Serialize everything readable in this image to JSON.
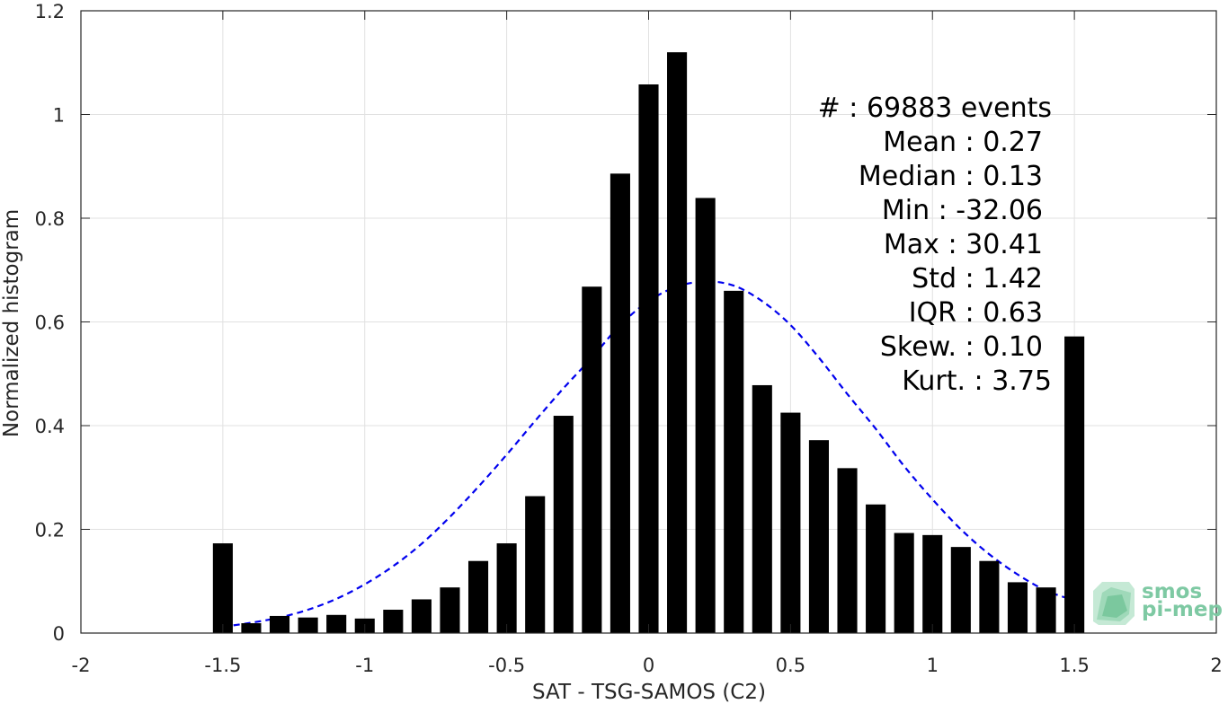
{
  "chart_data": {
    "type": "bar",
    "xlabel": "SAT - TSG-SAMOS (C2)",
    "ylabel": "Normalized histogram",
    "xlim": [
      -2,
      2
    ],
    "ylim": [
      0,
      1.2
    ],
    "xticks": [
      -2,
      -1.5,
      -1,
      -0.5,
      0,
      0.5,
      1,
      1.5,
      2
    ],
    "xtick_labels": [
      "-2",
      "-1.5",
      "-1",
      "-0.5",
      "0",
      "0.5",
      "1",
      "1.5",
      "2"
    ],
    "yticks": [
      0,
      0.2,
      0.4,
      0.6,
      0.8,
      1,
      1.2
    ],
    "ytick_labels": [
      "0",
      "0.2",
      "0.4",
      "0.6",
      "0.8",
      "1",
      "1.2"
    ],
    "grid": true,
    "bar_width": 0.07,
    "bars": [
      {
        "x": -1.5,
        "y": 0.173
      },
      {
        "x": -1.4,
        "y": 0.019
      },
      {
        "x": -1.3,
        "y": 0.033
      },
      {
        "x": -1.2,
        "y": 0.03
      },
      {
        "x": -1.1,
        "y": 0.035
      },
      {
        "x": -1.0,
        "y": 0.028
      },
      {
        "x": -0.9,
        "y": 0.045
      },
      {
        "x": -0.8,
        "y": 0.065
      },
      {
        "x": -0.7,
        "y": 0.088
      },
      {
        "x": -0.6,
        "y": 0.139
      },
      {
        "x": -0.5,
        "y": 0.173
      },
      {
        "x": -0.4,
        "y": 0.264
      },
      {
        "x": -0.3,
        "y": 0.419
      },
      {
        "x": -0.2,
        "y": 0.668
      },
      {
        "x": -0.1,
        "y": 0.886
      },
      {
        "x": 0.0,
        "y": 1.058
      },
      {
        "x": 0.1,
        "y": 1.12
      },
      {
        "x": 0.2,
        "y": 0.839
      },
      {
        "x": 0.3,
        "y": 0.66
      },
      {
        "x": 0.4,
        "y": 0.478
      },
      {
        "x": 0.5,
        "y": 0.425
      },
      {
        "x": 0.6,
        "y": 0.372
      },
      {
        "x": 0.7,
        "y": 0.318
      },
      {
        "x": 0.8,
        "y": 0.248
      },
      {
        "x": 0.9,
        "y": 0.193
      },
      {
        "x": 1.0,
        "y": 0.189
      },
      {
        "x": 1.1,
        "y": 0.166
      },
      {
        "x": 1.2,
        "y": 0.139
      },
      {
        "x": 1.3,
        "y": 0.098
      },
      {
        "x": 1.4,
        "y": 0.088
      },
      {
        "x": 1.5,
        "y": 0.572
      }
    ],
    "fit_curve": {
      "style": "dashed",
      "color": "#0000ee",
      "points": [
        [
          -1.5,
          0.012
        ],
        [
          -1.4,
          0.02
        ],
        [
          -1.3,
          0.03
        ],
        [
          -1.2,
          0.045
        ],
        [
          -1.1,
          0.066
        ],
        [
          -1.0,
          0.094
        ],
        [
          -0.9,
          0.129
        ],
        [
          -0.8,
          0.172
        ],
        [
          -0.7,
          0.224
        ],
        [
          -0.6,
          0.282
        ],
        [
          -0.5,
          0.344
        ],
        [
          -0.4,
          0.409
        ],
        [
          -0.3,
          0.472
        ],
        [
          -0.2,
          0.531
        ],
        [
          -0.1,
          0.594
        ],
        [
          0.0,
          0.64
        ],
        [
          0.1,
          0.668
        ],
        [
          0.2,
          0.678
        ],
        [
          0.3,
          0.67
        ],
        [
          0.4,
          0.64
        ],
        [
          0.5,
          0.594
        ],
        [
          0.6,
          0.531
        ],
        [
          0.7,
          0.461
        ],
        [
          0.8,
          0.394
        ],
        [
          0.9,
          0.322
        ],
        [
          1.0,
          0.258
        ],
        [
          1.1,
          0.2
        ],
        [
          1.2,
          0.152
        ],
        [
          1.3,
          0.113
        ],
        [
          1.4,
          0.082
        ],
        [
          1.5,
          0.063
        ]
      ]
    },
    "annotations": [
      "#  : 69883 events",
      "Mean : 0.27",
      "Median : 0.13",
      "Min : -32.06",
      "Max : 30.41",
      "Std : 1.42",
      "IQR : 0.63",
      "Skew. : 0.10",
      "Kurt. : 3.75"
    ]
  },
  "logo": {
    "line1": "smos",
    "line2": "pi-mep"
  },
  "colors": {
    "bar": "#000000",
    "grid": "#e1e1e1",
    "axis": "#262626",
    "logo": "#7ec9a3"
  }
}
